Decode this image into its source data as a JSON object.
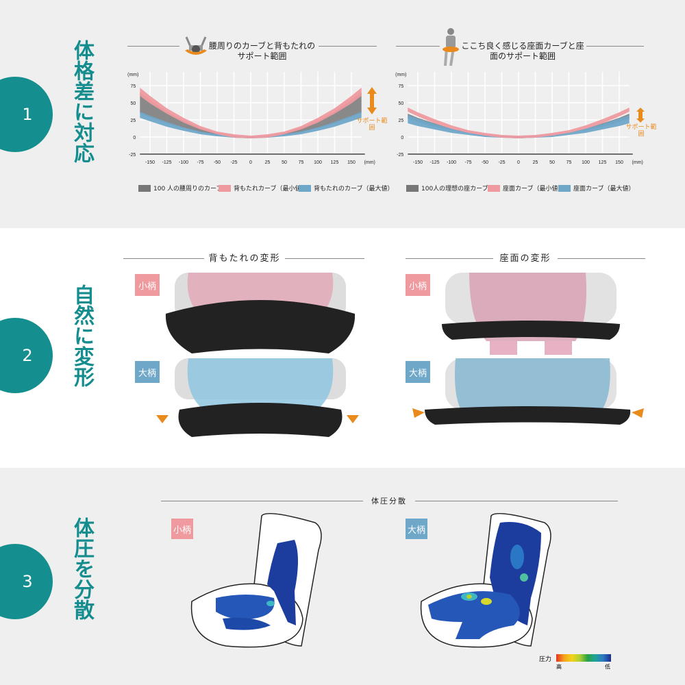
{
  "sections": [
    {
      "number": "1",
      "title": "体格差に対応"
    },
    {
      "number": "2",
      "title": "自然に変形"
    },
    {
      "number": "3",
      "title": "体圧を分散"
    }
  ],
  "colors": {
    "teal": "#148e8e",
    "pink": "#ee9a9f",
    "blue": "#6fa7c9",
    "gray": "#777777",
    "orange": "#e98a1c"
  },
  "section1": {
    "support_label": "サポート範囲"
  },
  "chart_data": [
    {
      "type": "area",
      "title": "腰周りのカーブと背もたれのサポート範囲",
      "icon": "person-top-view-icon",
      "y_unit": "(mm)",
      "x_unit": "(mm)",
      "xlim": [
        -165,
        165
      ],
      "ylim": [
        -25,
        75
      ],
      "x_ticks": [
        -150,
        -125,
        -100,
        -75,
        -50,
        -25,
        0,
        25,
        50,
        75,
        100,
        125,
        150
      ],
      "y_ticks": [
        75,
        50,
        25,
        0,
        -25
      ],
      "grid": true,
      "x": [
        -165,
        -150,
        -125,
        -100,
        -75,
        -50,
        -25,
        0,
        25,
        50,
        75,
        100,
        125,
        150,
        165
      ],
      "series": [
        {
          "name": "100 人の腰周りのカーブ",
          "color": "#777777",
          "upper": [
            65,
            54,
            37,
            24,
            13,
            6,
            2,
            0,
            2,
            6,
            13,
            24,
            37,
            54,
            65
          ],
          "lower": [
            35,
            29,
            20,
            13,
            7,
            3,
            1,
            0,
            1,
            3,
            7,
            13,
            20,
            29,
            35
          ]
        },
        {
          "name": "背もたれカーブ（最小値）",
          "color": "#ee9a9f",
          "upper": [
            72,
            60,
            42,
            28,
            16,
            8,
            4,
            2,
            4,
            8,
            16,
            28,
            42,
            60,
            72
          ],
          "lower": [
            60,
            49,
            34,
            21,
            11,
            4,
            -1,
            -2,
            -1,
            4,
            11,
            21,
            34,
            49,
            60
          ]
        },
        {
          "name": "背もたれのカーブ（最大値）",
          "color": "#6fa7c9",
          "upper": [
            37,
            31,
            22,
            14,
            8,
            4,
            2,
            1,
            2,
            4,
            8,
            14,
            22,
            31,
            37
          ],
          "lower": [
            28,
            23,
            15,
            9,
            4,
            1,
            -1,
            -2,
            -1,
            1,
            4,
            9,
            15,
            23,
            28
          ]
        }
      ]
    },
    {
      "type": "area",
      "title": "ここち良く感じる座面カーブと座面のサポート範囲",
      "icon": "seated-person-icon",
      "y_unit": "(mm)",
      "x_unit": "(mm)",
      "xlim": [
        -165,
        165
      ],
      "ylim": [
        -25,
        75
      ],
      "x_ticks": [
        -150,
        -125,
        -100,
        -75,
        -50,
        -25,
        0,
        25,
        50,
        75,
        100,
        125,
        150
      ],
      "y_ticks": [
        75,
        50,
        25,
        0,
        -25
      ],
      "grid": true,
      "x": [
        -165,
        -150,
        -125,
        -100,
        -75,
        -50,
        -25,
        0,
        25,
        50,
        75,
        100,
        125,
        150,
        165
      ],
      "series": [
        {
          "name": "100人の理想の座カーブ",
          "color": "#777777",
          "upper": [
            34,
            28,
            20,
            12,
            7,
            3,
            1,
            0,
            1,
            3,
            7,
            12,
            20,
            28,
            34
          ],
          "lower": [
            27,
            22,
            15,
            10,
            6,
            2,
            1,
            0,
            1,
            2,
            6,
            10,
            15,
            22,
            27
          ]
        },
        {
          "name": "座面カーブ（最小値）",
          "color": "#ee9a9f",
          "upper": [
            43,
            36,
            26,
            17,
            10,
            6,
            3,
            2,
            3,
            6,
            10,
            17,
            26,
            36,
            43
          ],
          "lower": [
            37,
            30,
            20,
            12,
            6,
            2,
            -1,
            -2,
            -1,
            2,
            6,
            12,
            20,
            30,
            37
          ]
        },
        {
          "name": "座面カーブ（最大値）",
          "color": "#6fa7c9",
          "upper": [
            32,
            27,
            19,
            12,
            7,
            4,
            2,
            1,
            2,
            4,
            7,
            12,
            19,
            27,
            32
          ],
          "lower": [
            20,
            16,
            11,
            6,
            3,
            0,
            -1,
            -2,
            -1,
            0,
            3,
            6,
            11,
            16,
            20
          ]
        }
      ]
    }
  ],
  "section2": {
    "back_title": "背もたれの変形",
    "seat_title": "座面の変形",
    "small": "小柄",
    "large": "大柄"
  },
  "section3": {
    "title": "体圧分散",
    "small": "小柄",
    "large": "大柄",
    "pressure_label": "圧力",
    "high": "高",
    "low": "低"
  }
}
